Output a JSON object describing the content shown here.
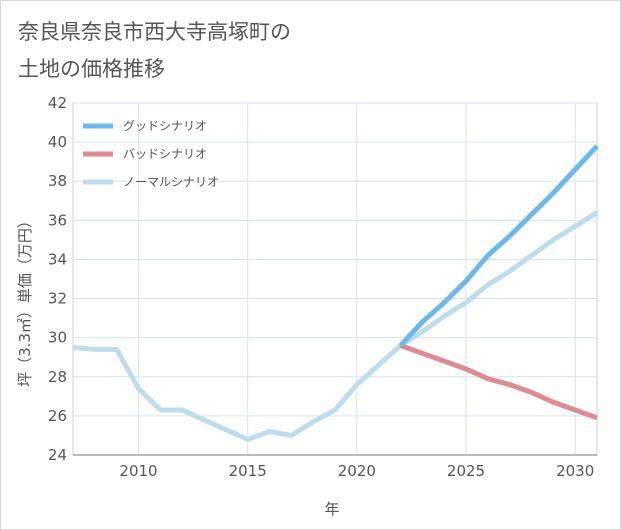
{
  "chart_data": {
    "type": "line",
    "title": "奈良県奈良市西大寺高塚町の\n土地の価格推移",
    "xlabel": "年",
    "ylabel": "坪（3.3㎡）単価（万円）",
    "xlim": [
      2007,
      2031
    ],
    "ylim": [
      24,
      42
    ],
    "x_ticks": [
      2010,
      2015,
      2020,
      2025,
      2030
    ],
    "y_ticks": [
      24,
      26,
      28,
      30,
      32,
      34,
      36,
      38,
      40,
      42
    ],
    "grid": true,
    "legend_position": "top-left",
    "series": [
      {
        "name": "グッドシナリオ",
        "color": "#6cb8ec",
        "x": [
          2022,
          2023,
          2024,
          2025,
          2026,
          2027,
          2028,
          2029,
          2030,
          2031
        ],
        "values": [
          29.6,
          30.8,
          31.8,
          32.9,
          34.2,
          35.2,
          36.3,
          37.4,
          38.6,
          39.8
        ]
      },
      {
        "name": "バッドシナリオ",
        "color": "#de8a91",
        "x": [
          2022,
          2023,
          2024,
          2025,
          2026,
          2027,
          2028,
          2029,
          2030,
          2031
        ],
        "values": [
          29.6,
          29.2,
          28.8,
          28.4,
          27.9,
          27.6,
          27.2,
          26.7,
          26.3,
          25.9
        ]
      },
      {
        "name": "ノーマルシナリオ",
        "color": "#bddcec",
        "x": [
          2007,
          2008,
          2009,
          2010,
          2011,
          2012,
          2013,
          2014,
          2015,
          2016,
          2017,
          2018,
          2019,
          2020,
          2021,
          2022,
          2023,
          2024,
          2025,
          2026,
          2027,
          2028,
          2029,
          2030,
          2031
        ],
        "values": [
          29.5,
          29.4,
          29.4,
          27.4,
          26.3,
          26.3,
          25.8,
          25.3,
          24.8,
          25.2,
          25.0,
          25.7,
          26.3,
          27.6,
          28.6,
          29.6,
          30.3,
          31.1,
          31.8,
          32.7,
          33.4,
          34.2,
          35.0,
          35.7,
          36.4
        ]
      }
    ]
  }
}
